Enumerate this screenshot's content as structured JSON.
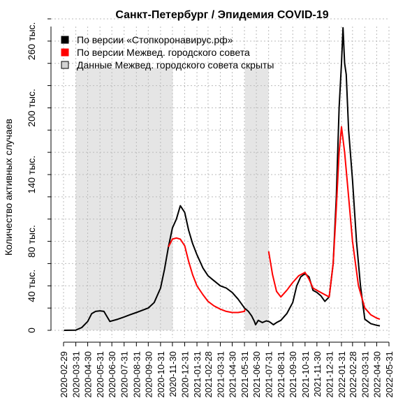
{
  "chart_data": {
    "type": "line",
    "title": "Санкт-Петербург / Эпидемия COVID-19",
    "ylabel": "Количество активных случаев",
    "xlabel": "",
    "x_range": [
      "2020-02-29",
      "2022-05-31"
    ],
    "ylim": [
      0,
      280000
    ],
    "y_ticks": [
      {
        "value": 0,
        "label": "0"
      },
      {
        "value": 40000,
        "label": "40 тыс."
      },
      {
        "value": 80000,
        "label": "80 тыс."
      },
      {
        "value": 140000,
        "label": "140 тыс."
      },
      {
        "value": 200000,
        "label": "200 тыс."
      },
      {
        "value": 260000,
        "label": "260 тыс."
      }
    ],
    "x_ticks": [
      "2020-02-29",
      "2020-03-31",
      "2020-04-30",
      "2020-05-31",
      "2020-06-30",
      "2020-07-31",
      "2020-08-31",
      "2020-09-30",
      "2020-10-31",
      "2020-11-30",
      "2020-12-31",
      "2021-01-31",
      "2021-02-28",
      "2021-03-31",
      "2021-04-30",
      "2021-05-31",
      "2021-06-30",
      "2021-07-31",
      "2021-08-31",
      "2021-09-30",
      "2021-10-31",
      "2021-11-30",
      "2021-12-31",
      "2022-01-31",
      "2022-02-28",
      "2022-03-31",
      "2022-04-30",
      "2022-05-31"
    ],
    "grid": true,
    "legend_position": "top-left",
    "shaded_periods": [
      {
        "from": "2020-03-31",
        "to": "2020-12-01"
      },
      {
        "from": "2021-06-01",
        "to": "2021-07-31"
      }
    ],
    "legend": [
      {
        "label": "По версии «Стопкоронавирус.рф»",
        "color": "#000000",
        "kind": "line"
      },
      {
        "label": "По версии Межвед. городского совета",
        "color": "#ff0000",
        "kind": "line"
      },
      {
        "label": "Данные Межвед. городского совета скрыты",
        "color": "#d3d3d3",
        "kind": "area"
      }
    ],
    "series": [
      {
        "name": "По версии «Стопкоронавирус.рф»",
        "color": "#000000",
        "points": [
          [
            "2020-03-01",
            0
          ],
          [
            "2020-03-31",
            200
          ],
          [
            "2020-04-15",
            2500
          ],
          [
            "2020-04-30",
            8000
          ],
          [
            "2020-05-10",
            15000
          ],
          [
            "2020-05-20",
            17000
          ],
          [
            "2020-05-31",
            17500
          ],
          [
            "2020-06-10",
            17000
          ],
          [
            "2020-06-20",
            11000
          ],
          [
            "2020-06-25",
            8000
          ],
          [
            "2020-07-15",
            10000
          ],
          [
            "2020-07-31",
            12000
          ],
          [
            "2020-08-15",
            14000
          ],
          [
            "2020-08-31",
            16000
          ],
          [
            "2020-09-15",
            18000
          ],
          [
            "2020-09-30",
            20000
          ],
          [
            "2020-10-15",
            25000
          ],
          [
            "2020-10-31",
            38000
          ],
          [
            "2020-11-10",
            55000
          ],
          [
            "2020-11-20",
            75000
          ],
          [
            "2020-11-30",
            92000
          ],
          [
            "2020-12-10",
            100000
          ],
          [
            "2020-12-20",
            112000
          ],
          [
            "2020-12-31",
            106000
          ],
          [
            "2021-01-10",
            90000
          ],
          [
            "2021-01-20",
            78000
          ],
          [
            "2021-01-31",
            68000
          ],
          [
            "2021-02-15",
            56000
          ],
          [
            "2021-02-28",
            49000
          ],
          [
            "2021-03-10",
            46000
          ],
          [
            "2021-03-31",
            40000
          ],
          [
            "2021-04-15",
            38000
          ],
          [
            "2021-04-30",
            34000
          ],
          [
            "2021-05-15",
            28000
          ],
          [
            "2021-05-31",
            20000
          ],
          [
            "2021-06-10",
            17000
          ],
          [
            "2021-06-18",
            13000
          ],
          [
            "2021-06-25",
            8000
          ],
          [
            "2021-06-28",
            5000
          ],
          [
            "2021-07-05",
            9000
          ],
          [
            "2021-07-15",
            7000
          ],
          [
            "2021-07-25",
            8500
          ],
          [
            "2021-07-31",
            8000
          ],
          [
            "2021-08-05",
            7000
          ],
          [
            "2021-08-12",
            5000
          ],
          [
            "2021-08-20",
            7000
          ],
          [
            "2021-08-31",
            9000
          ],
          [
            "2021-09-15",
            15000
          ],
          [
            "2021-09-30",
            25000
          ],
          [
            "2021-10-10",
            40000
          ],
          [
            "2021-10-20",
            48000
          ],
          [
            "2021-10-31",
            51000
          ],
          [
            "2021-11-10",
            48000
          ],
          [
            "2021-11-20",
            36000
          ],
          [
            "2021-11-30",
            34000
          ],
          [
            "2021-12-10",
            31000
          ],
          [
            "2021-12-20",
            26000
          ],
          [
            "2021-12-31",
            30000
          ],
          [
            "2022-01-10",
            60000
          ],
          [
            "2022-01-18",
            120000
          ],
          [
            "2022-01-25",
            200000
          ],
          [
            "2022-01-31",
            240000
          ],
          [
            "2022-02-04",
            272000
          ],
          [
            "2022-02-08",
            240000
          ],
          [
            "2022-02-12",
            230000
          ],
          [
            "2022-02-18",
            180000
          ],
          [
            "2022-02-28",
            135000
          ],
          [
            "2022-03-10",
            80000
          ],
          [
            "2022-03-20",
            40000
          ],
          [
            "2022-03-31",
            10000
          ],
          [
            "2022-04-15",
            6000
          ],
          [
            "2022-04-30",
            4500
          ],
          [
            "2022-05-08",
            4000
          ]
        ]
      },
      {
        "name": "По версии Межвед. городского совета",
        "color": "#ff0000",
        "segments": [
          [
            [
              "2020-11-20",
              75000
            ],
            [
              "2020-11-30",
              82000
            ],
            [
              "2020-12-10",
              83000
            ],
            [
              "2020-12-20",
              82000
            ],
            [
              "2020-12-31",
              76000
            ],
            [
              "2021-01-10",
              62000
            ],
            [
              "2021-01-20",
              50000
            ],
            [
              "2021-01-31",
              40000
            ],
            [
              "2021-02-15",
              32000
            ],
            [
              "2021-02-28",
              26000
            ],
            [
              "2021-03-15",
              22000
            ],
            [
              "2021-03-31",
              19000
            ],
            [
              "2021-04-15",
              17000
            ],
            [
              "2021-04-30",
              16000
            ],
            [
              "2021-05-15",
              16000
            ],
            [
              "2021-05-31",
              17000
            ],
            [
              "2021-06-01",
              19000
            ]
          ],
          [
            [
              "2021-07-31",
              71000
            ],
            [
              "2021-08-10",
              50000
            ],
            [
              "2021-08-20",
              35000
            ],
            [
              "2021-08-31",
              30000
            ],
            [
              "2021-09-15",
              36000
            ],
            [
              "2021-09-30",
              43000
            ],
            [
              "2021-10-15",
              49000
            ],
            [
              "2021-10-31",
              52000
            ],
            [
              "2021-11-10",
              46000
            ],
            [
              "2021-11-20",
              38000
            ],
            [
              "2021-11-30",
              36000
            ],
            [
              "2021-12-15",
              33000
            ],
            [
              "2021-12-31",
              30000
            ],
            [
              "2022-01-10",
              60000
            ],
            [
              "2022-01-18",
              110000
            ],
            [
              "2022-01-25",
              160000
            ],
            [
              "2022-01-31",
              183000
            ],
            [
              "2022-02-08",
              160000
            ],
            [
              "2022-02-18",
              120000
            ],
            [
              "2022-02-28",
              80000
            ],
            [
              "2022-03-15",
              40000
            ],
            [
              "2022-03-31",
              20000
            ],
            [
              "2022-04-15",
              14000
            ],
            [
              "2022-04-30",
              11000
            ],
            [
              "2022-05-08",
              10000
            ]
          ]
        ]
      }
    ]
  }
}
